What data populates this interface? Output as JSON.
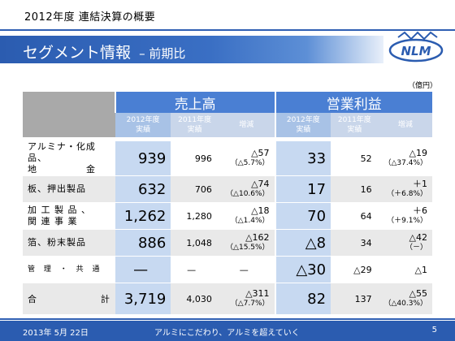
{
  "header": {
    "top_title": "2012年度 連結決算の概要",
    "banner_title": "セグメント情報",
    "banner_sub": "– 前期比",
    "logo_text": "NLM"
  },
  "unit": "（億円）",
  "groups": [
    "売上高",
    "営業利益"
  ],
  "subheaders": {
    "current": [
      "2012年度",
      "実績"
    ],
    "previous": [
      "2011年度",
      "実績"
    ],
    "change": "増減"
  },
  "rows": [
    {
      "label_lines": [
        "アルミナ・化成品、",
        "地　　　　　金"
      ],
      "sales_2012": "939",
      "sales_2011": "996",
      "sales_chg": "△57",
      "sales_chg_pct": "（△5.7%）",
      "op_2012": "33",
      "op_2011": "52",
      "op_chg": "△19",
      "op_chg_pct": "（△37.4%）"
    },
    {
      "label_lines": [
        "板、押出製品"
      ],
      "sales_2012": "632",
      "sales_2011": "706",
      "sales_chg": "△74",
      "sales_chg_pct": "（△10.6%）",
      "op_2012": "17",
      "op_2011": "16",
      "op_chg": "＋1",
      "op_chg_pct": "（＋6.8%）"
    },
    {
      "label_lines": [
        "加 工 製 品 、",
        "関 連 事 業"
      ],
      "sales_2012": "1,262",
      "sales_2011": "1,280",
      "sales_chg": "△18",
      "sales_chg_pct": "（△1.4%）",
      "op_2012": "70",
      "op_2011": "64",
      "op_chg": "＋6",
      "op_chg_pct": "（＋9.1%）"
    },
    {
      "label_lines": [
        "箔、粉末製品"
      ],
      "sales_2012": "886",
      "sales_2011": "1,048",
      "sales_chg": "△162",
      "sales_chg_pct": "（△15.5%）",
      "op_2012": "△8",
      "op_2011": "34",
      "op_chg": "△42",
      "op_chg_pct": "（－）"
    },
    {
      "label_lines": [
        "管 理 ・ 共 通"
      ],
      "sales_2012": "—",
      "sales_2011": "—",
      "sales_chg": "—",
      "sales_chg_pct": "",
      "op_2012": "△30",
      "op_2011": "△29",
      "op_chg": "△1",
      "op_chg_pct": ""
    }
  ],
  "total": {
    "label_left": "合",
    "label_right": "計",
    "sales_2012": "3,719",
    "sales_2011": "4,030",
    "sales_chg": "△311",
    "sales_chg_pct": "（△7.7%）",
    "op_2012": "82",
    "op_2011": "137",
    "op_chg": "△55",
    "op_chg_pct": "（△40.3%）"
  },
  "footer": {
    "date": "2013年 5月 22日",
    "slogan": "アルミにこだわり、アルミを超えていく",
    "page": "5"
  },
  "colors": {
    "banner_blue": "#2b5cb0",
    "group_header_blue": "#4a7fd3",
    "current_cell_blue": "#c7d9f1",
    "header_gray": "#a9a9a9"
  }
}
